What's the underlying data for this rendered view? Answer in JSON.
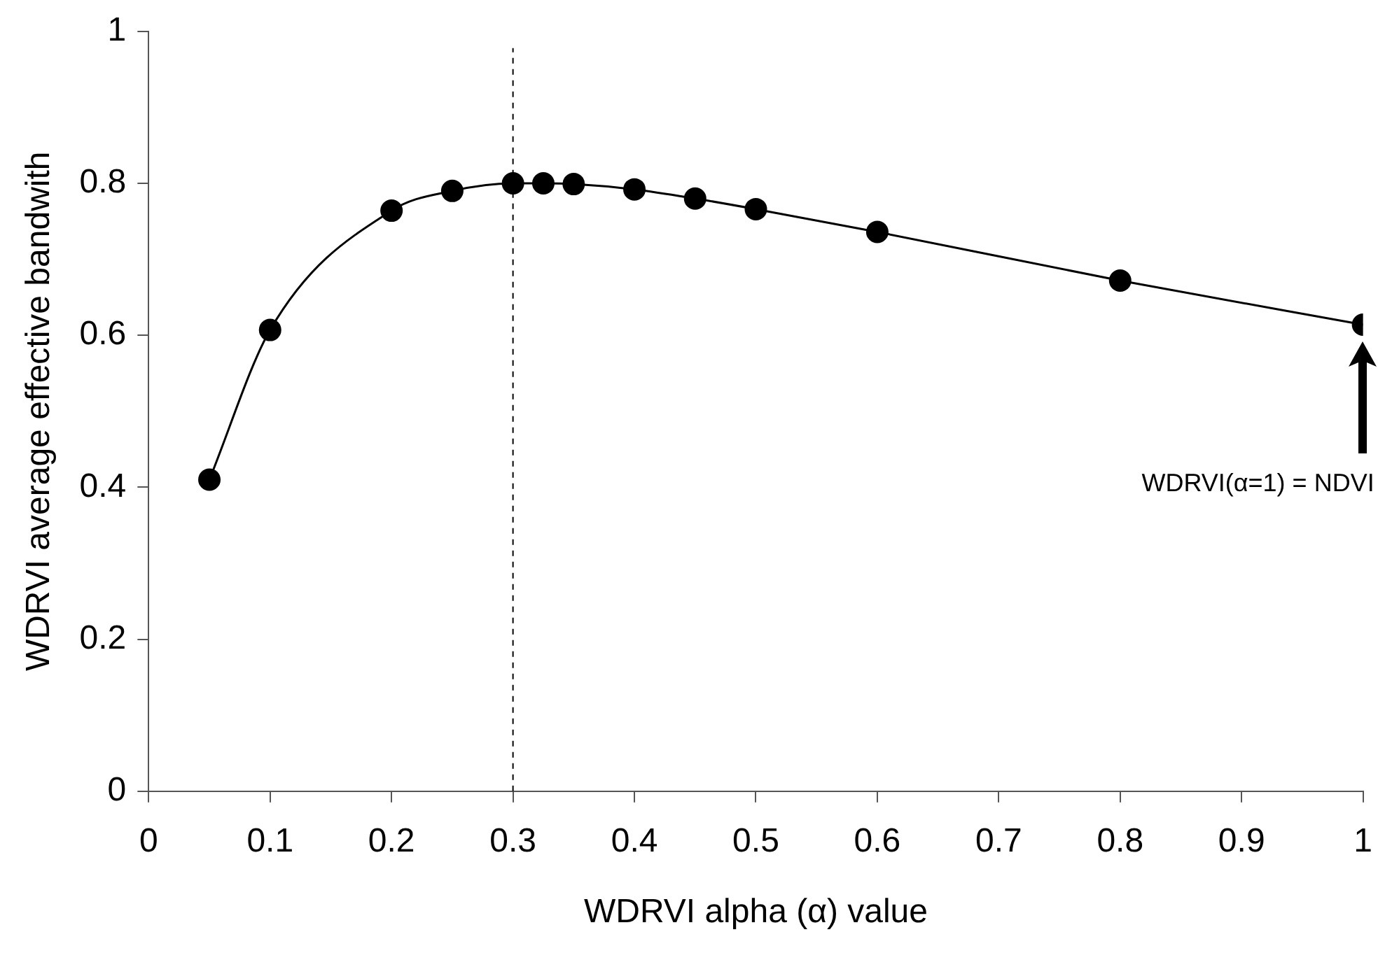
{
  "chart_data": {
    "type": "line",
    "xlabel": "WDRVI alpha (α) value",
    "ylabel": "WDRVI average effective bandwith",
    "x": [
      0.05,
      0.1,
      0.2,
      0.25,
      0.3,
      0.325,
      0.35,
      0.4,
      0.45,
      0.5,
      0.6,
      0.8,
      1
    ],
    "series": [
      {
        "color": "#000000",
        "values": [
          0.41,
          0.607,
          0.764,
          0.79,
          0.8,
          0.8,
          0.799,
          0.792,
          0.78,
          0.766,
          0.736,
          0.672,
          0.614
        ]
      }
    ],
    "xlim": [
      0,
      1
    ],
    "xticks": [
      0,
      0.1,
      0.2,
      0.3,
      0.4,
      0.5,
      0.6,
      0.7,
      0.8,
      0.9,
      1
    ],
    "ylim": [
      0,
      1
    ],
    "yticks": [
      0,
      0.2,
      0.4,
      0.6,
      0.8,
      1
    ],
    "ref_lines": [
      {
        "axis": "x",
        "value": 0.3,
        "line_style": "dashed",
        "color": "#000000"
      }
    ],
    "annotations": [
      "WDRVI(α=1) = NDVI"
    ],
    "grid": false,
    "legend": false,
    "marker": "circle",
    "line_style": "solid"
  }
}
